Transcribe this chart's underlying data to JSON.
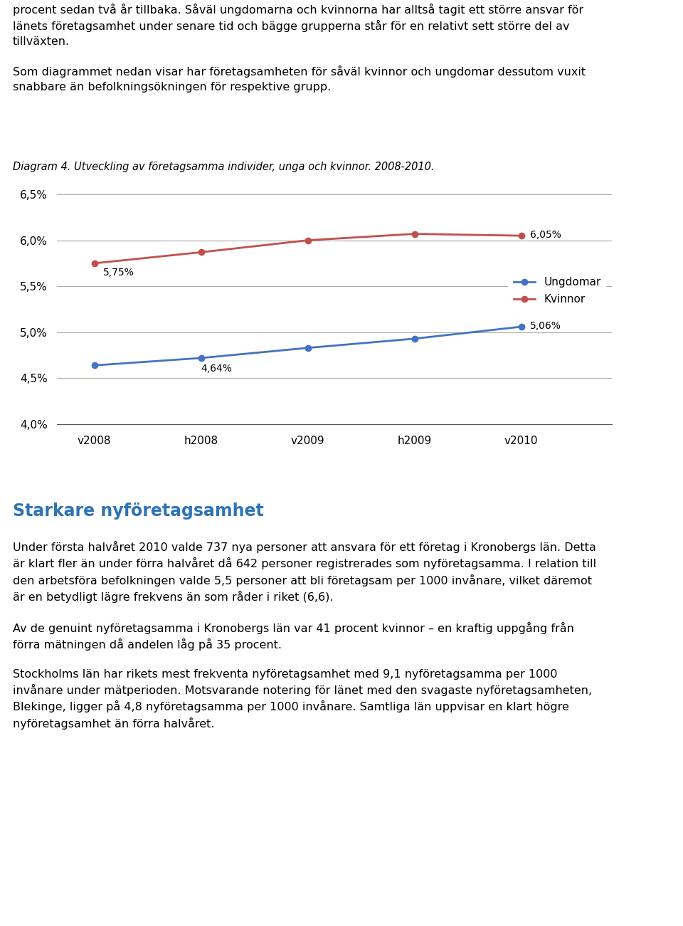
{
  "text_top1": "procent sedan två år tillbaka. Såväl ungdomarna och kvinnorna har alltså tagit ett större ansvar för",
  "text_top2": "länets företagsamhet under senare tid och bägge grupperna står för en relativt sett större del av",
  "text_top3": "tillväxten.",
  "text_mid1": "Som diagrammet nedan visar har företagsamheten för såväl kvinnor och ungdomar dessutom vuxit",
  "text_mid2": "snabbare än befolkningsökningen för respektive grupp.",
  "diagram_label": "Diagram 4. Utveckling av företagsamma individer, unga och kvinnor. 2008-2010.",
  "x_labels": [
    "v2008",
    "h2008",
    "v2009",
    "h2009",
    "v2010"
  ],
  "ungdomar_values": [
    4.64,
    4.72,
    4.83,
    4.93,
    5.06
  ],
  "kvinnor_values": [
    5.75,
    5.87,
    6.0,
    6.07,
    6.05
  ],
  "ungdomar_color": "#4472C4",
  "kvinnor_color": "#C0504D",
  "ylim_min": 4.0,
  "ylim_max": 6.5,
  "yticks": [
    4.0,
    4.5,
    5.0,
    5.5,
    6.0,
    6.5
  ],
  "legend_ungdomar": "Ungdomar",
  "legend_kvinnor": "Kvinnor",
  "heading_bottom": "Starkare nyföretagsamhet",
  "heading_color": "#2E74B5",
  "para1": "Under första halvåret 2010 valde 737 nya personer att ansvara för ett företag i Kronobergs län. Detta\när klart fler än under förra halvåret då 642 personer registrerades som nyföretagsamma. I relation till\nden arbetsföra befolkningen valde 5,5 personer att bli företagsam per 1000 invånare, vilket däremot\när en betydligt lägre frekvens än som råder i riket (6,6).",
  "para2": "Av de genuint nyföretagsamma i Kronobergs län var 41 procent kvinnor – en kraftig uppgång från\nförra mätningen då andelen låg på 35 procent.",
  "para3": "Stockholms län har rikets mest frekventa nyföretagsamhet med 9,1 nyföretagsamma per 1000\ninvånare under mätperioden. Motsvarande notering för länet med den svagaste nyföretagsamheten,\nBlekinge, ligger på 4,8 nyföretagsamma per 1000 invånare. Samtliga län uppvisar en klart högre\nnyföretagsamhet än förra halvåret.",
  "fig_width": 9.6,
  "fig_height": 13.01,
  "dpi": 100
}
